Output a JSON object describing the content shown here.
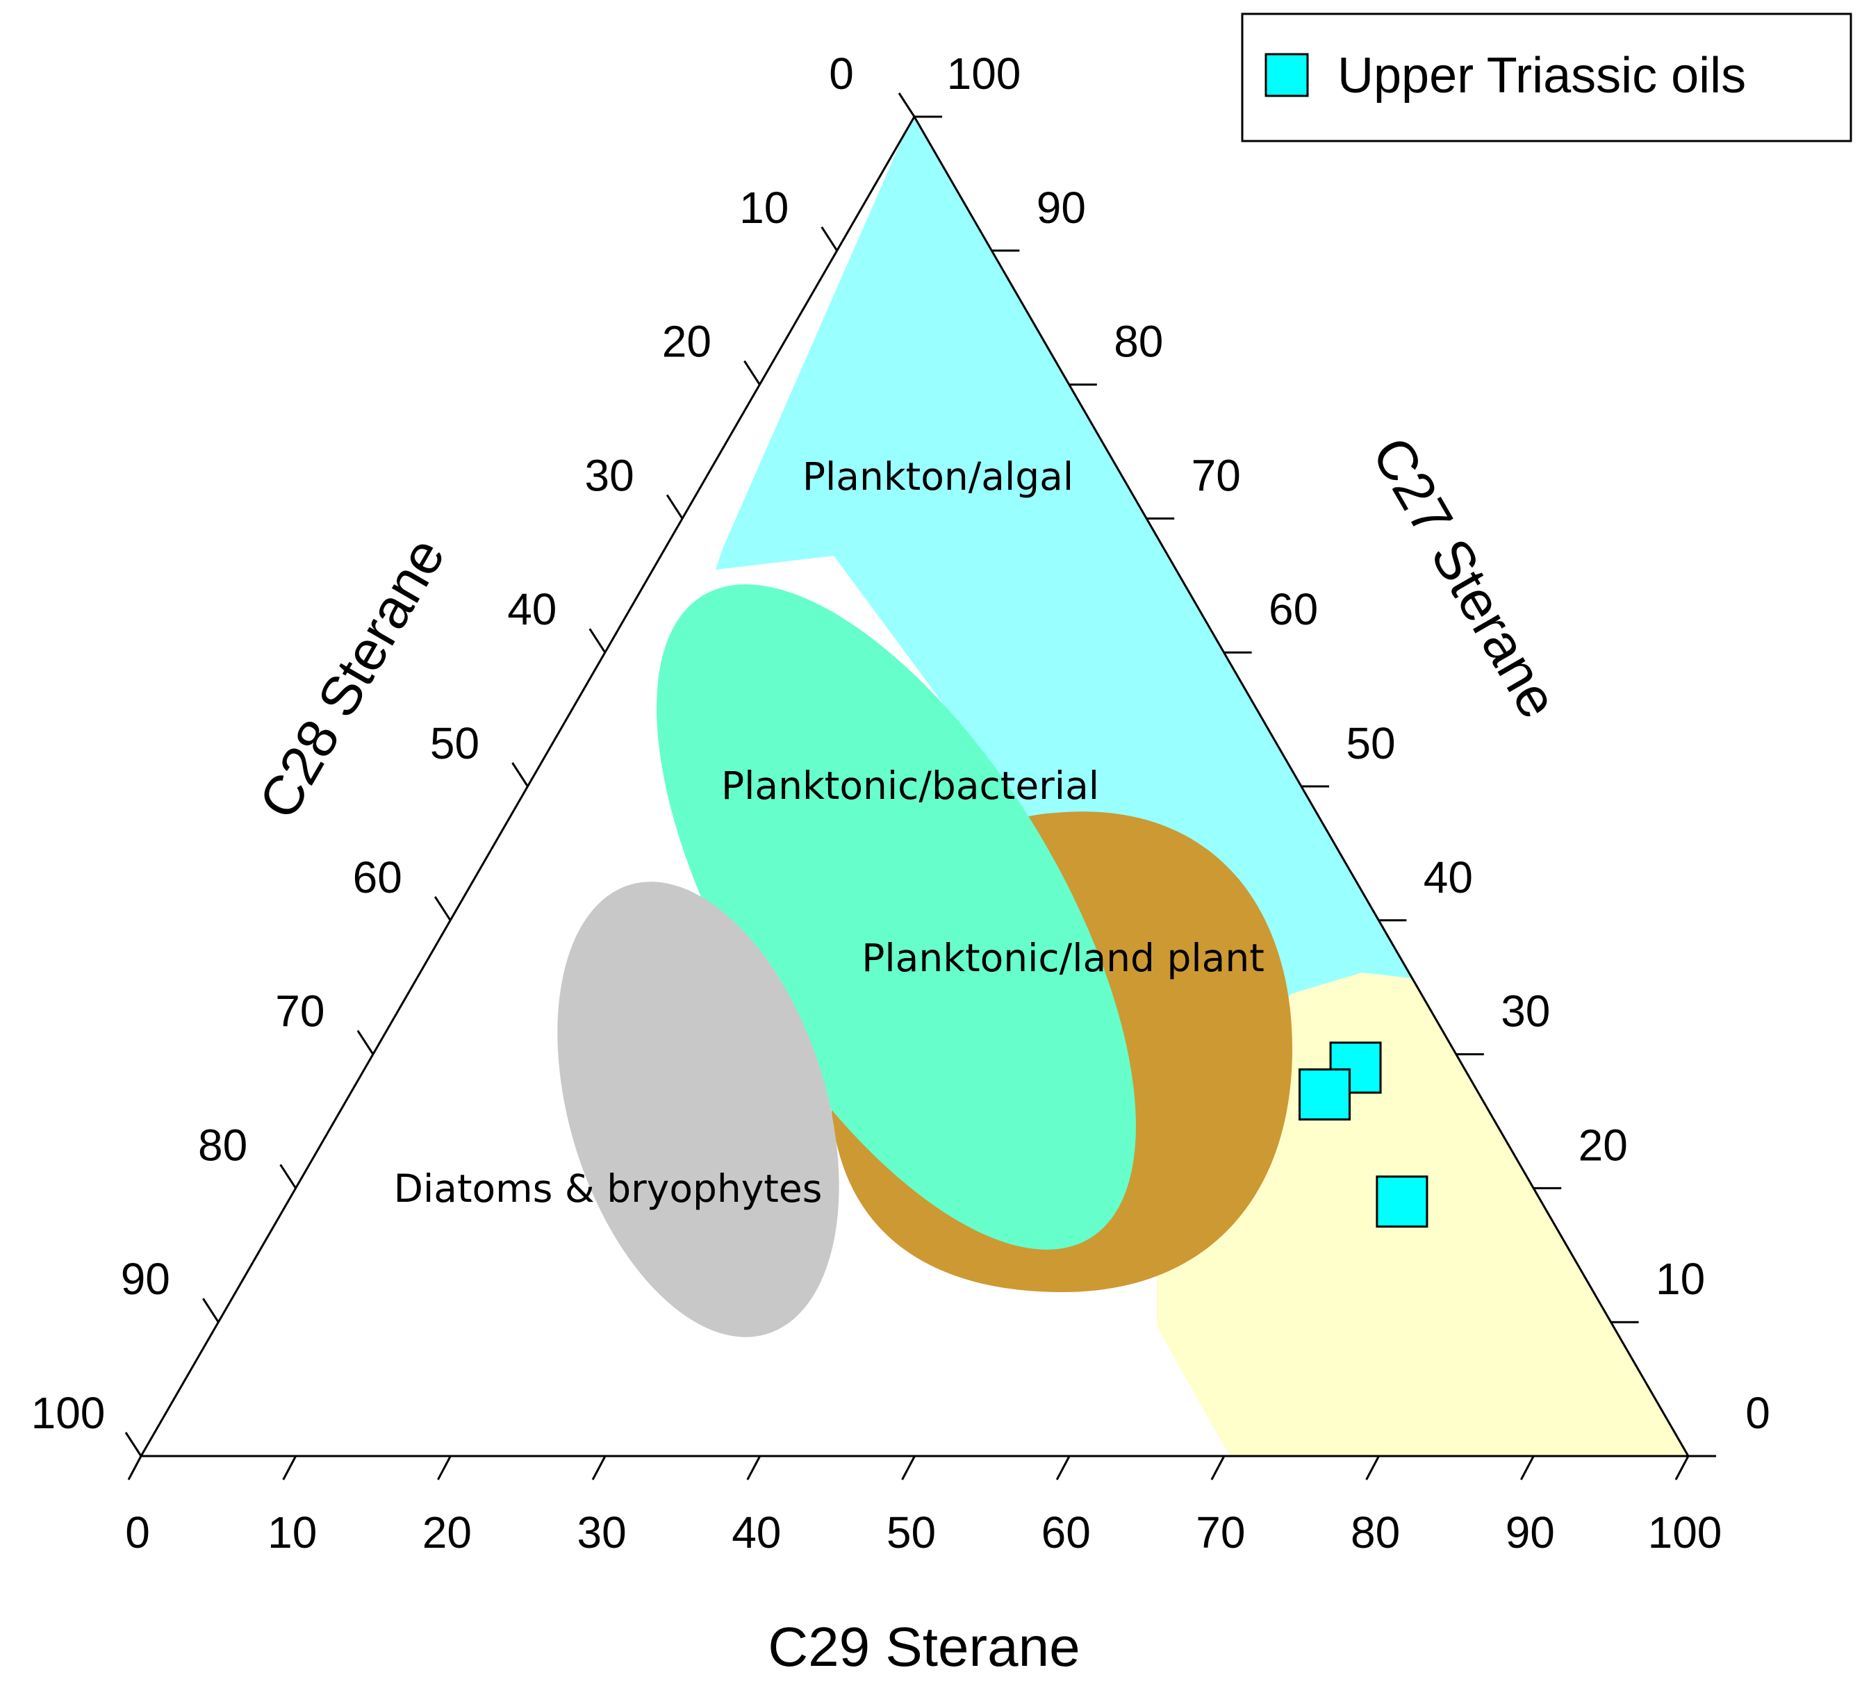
{
  "chart_data": {
    "type": "ternary-scatter",
    "axes": {
      "c29": {
        "title": "C29 Sterane",
        "ticks": [
          0,
          10,
          20,
          30,
          40,
          50,
          60,
          70,
          80,
          90,
          100
        ]
      },
      "c28": {
        "title": "C28 Sterane",
        "ticks": [
          0,
          10,
          20,
          30,
          40,
          50,
          60,
          70,
          80,
          90,
          100
        ]
      },
      "c27": {
        "title": "C27 Sterane",
        "ticks": [
          0,
          10,
          20,
          30,
          40,
          50,
          60,
          70,
          80,
          90,
          100
        ]
      }
    },
    "tick_labels": [
      "0",
      "10",
      "20",
      "30",
      "40",
      "50",
      "60",
      "70",
      "80",
      "90",
      "100"
    ],
    "regions": [
      {
        "name": "Plankton/algal",
        "color": "#99ffff"
      },
      {
        "name": "Planktonic/bacterial",
        "color": "#66ffcc"
      },
      {
        "name": "Planktonic/land plant",
        "color": "#cc9933"
      },
      {
        "name": "Diatoms & bryophytes",
        "color": "#c8c8c8"
      },
      {
        "name": "",
        "color": "#ffffcc"
      }
    ],
    "series": [
      {
        "name": "Upper Triassic oils",
        "marker": "square",
        "color": "#00ffff",
        "points": [
          {
            "c27": 29,
            "c28": 7,
            "c29": 64
          },
          {
            "c27": 27,
            "c28": 10,
            "c29": 63
          },
          {
            "c27": 19,
            "c28": 9,
            "c29": 72
          }
        ]
      }
    ],
    "legend_position": "top-right"
  }
}
